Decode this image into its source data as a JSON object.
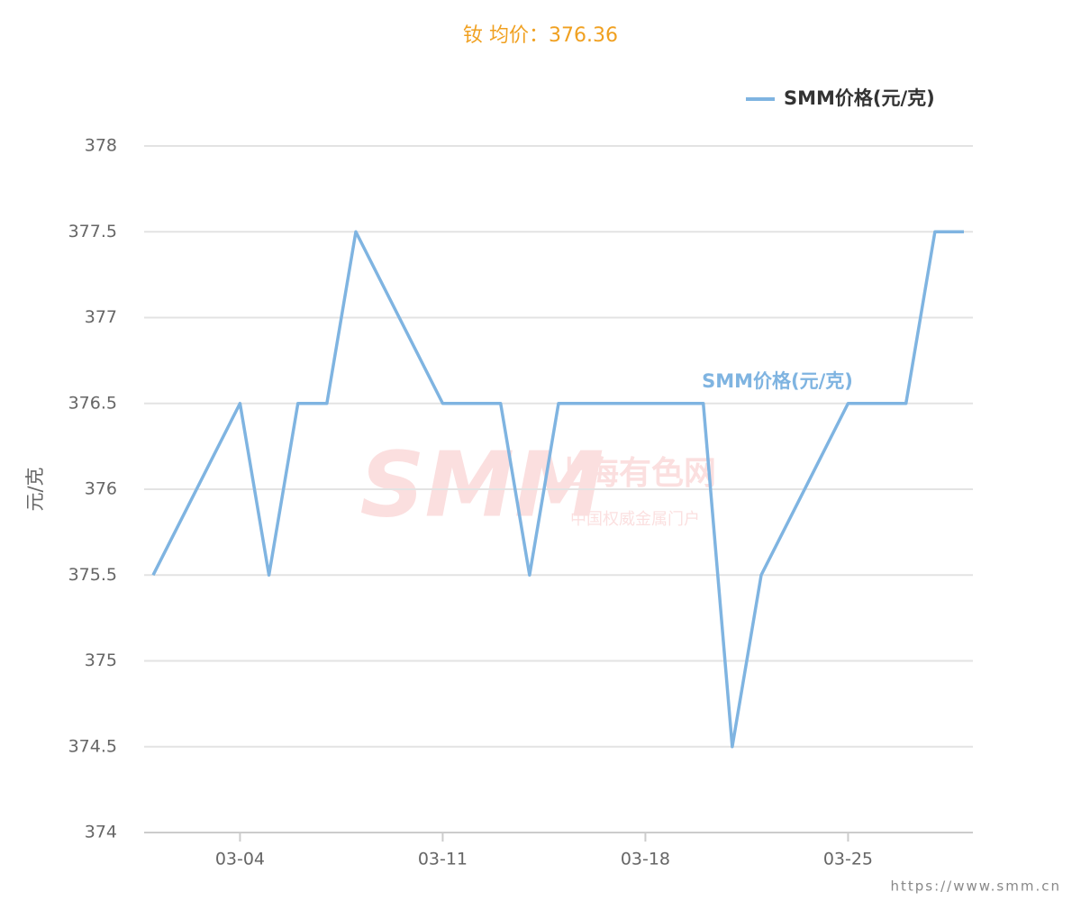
{
  "chart_data": {
    "type": "line",
    "title": "钕 均价：376.36",
    "ylabel": "元/克",
    "x": [
      "03-01",
      "03-04",
      "03-05",
      "03-06",
      "03-07",
      "03-08",
      "03-11",
      "03-12",
      "03-13",
      "03-14",
      "03-15",
      "03-18",
      "03-19",
      "03-20",
      "03-21",
      "03-22",
      "03-25",
      "03-26",
      "03-27",
      "03-28",
      "03-29"
    ],
    "xticks": [
      "03-04",
      "03-11",
      "03-18",
      "03-25"
    ],
    "series": [
      {
        "name": "SMM价格(元/克)",
        "color": "#7fb4e1",
        "values": [
          375.5,
          376.5,
          375.5,
          376.5,
          376.5,
          377.5,
          376.5,
          376.5,
          376.5,
          375.5,
          376.5,
          376.5,
          376.5,
          376.5,
          374.5,
          375.5,
          376.5,
          376.5,
          376.5,
          377.5,
          377.5
        ]
      }
    ],
    "ylim": [
      374,
      378
    ],
    "yticks": [
      374,
      374.5,
      375,
      375.5,
      376,
      376.5,
      377,
      377.5,
      378
    ],
    "grid": true,
    "legend": "top-right",
    "watermark": {
      "brand": "SMM",
      "name": "上海有色网",
      "slogan": "中国权威金属门户"
    },
    "source": "https://www.smm.cn"
  }
}
